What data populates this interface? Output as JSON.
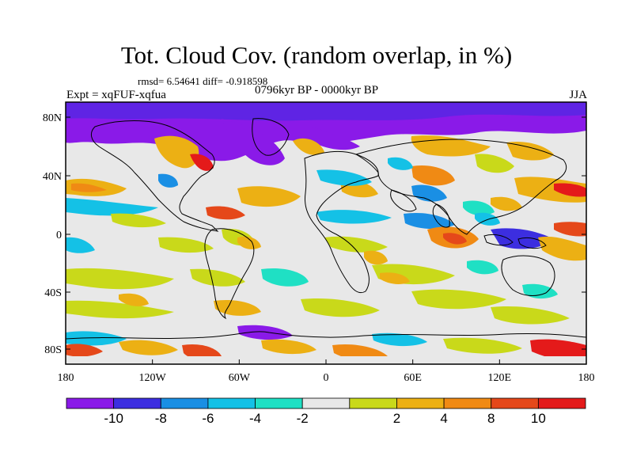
{
  "title": "Tot. Cloud Cov. (random overlap, in %)",
  "stats_line": "rmsd= 6.54641 diff= -0.918598",
  "period": "0796kyr BP - 0000kyr BP",
  "experiment": "Expt = xqFUF-xqfua",
  "season": "JJA",
  "lat_labels": [
    "80N",
    "40N",
    "0",
    "40S",
    "80S"
  ],
  "lon_labels": [
    "180",
    "120W",
    "60W",
    "0",
    "60E",
    "120E",
    "180"
  ],
  "colorbar": {
    "colors": [
      "#8a1ae8",
      "#3c2ee0",
      "#1a8fe4",
      "#14c1e6",
      "#1fe0c4",
      "#e8e8e8",
      "#c9d91a",
      "#ecb014",
      "#f08a14",
      "#e5481a",
      "#e41a1a"
    ],
    "tick_labels": [
      "-10",
      "-8",
      "-6",
      "-4",
      "-2",
      "2",
      "4",
      "8",
      "10"
    ]
  }
}
